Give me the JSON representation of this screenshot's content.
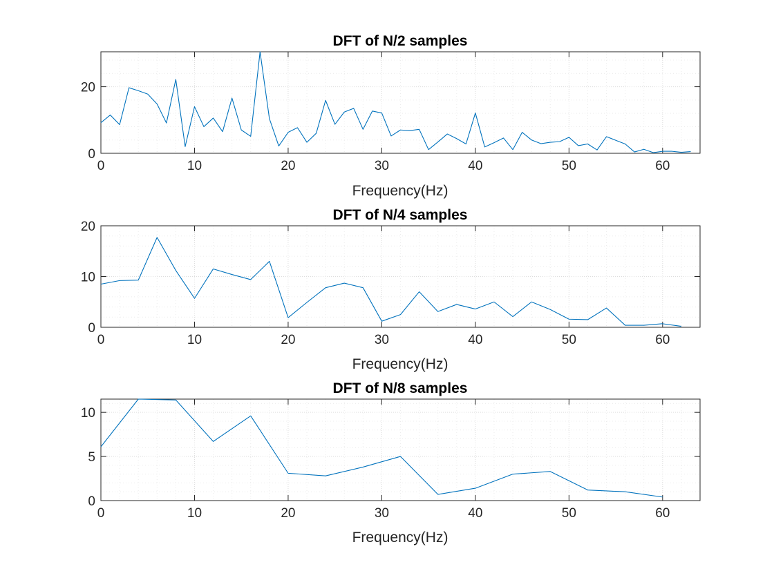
{
  "chart_data": [
    {
      "type": "line",
      "title": "DFT of N/2 samples",
      "xlabel": "Frequency(Hz)",
      "ylabel": "",
      "xlim": [
        0,
        64
      ],
      "ylim": [
        0,
        30.5
      ],
      "xticks": [
        0,
        10,
        20,
        30,
        40,
        50,
        60
      ],
      "yticks": [
        0,
        20
      ],
      "grid": true,
      "minor_grid": true,
      "series": [
        {
          "color": "#0072BD",
          "x": [
            0,
            1,
            2,
            3,
            4,
            5,
            6,
            7,
            8,
            9,
            10,
            11,
            12,
            13,
            14,
            15,
            16,
            17,
            18,
            19,
            20,
            21,
            22,
            23,
            24,
            25,
            26,
            27,
            28,
            29,
            30,
            31,
            32,
            33,
            34,
            35,
            36,
            37,
            38,
            39,
            40,
            41,
            42,
            43,
            44,
            45,
            46,
            47,
            48,
            49,
            50,
            51,
            52,
            53,
            54,
            55,
            56,
            57,
            58,
            59,
            60,
            61,
            62,
            63
          ],
          "y": [
            9.2,
            11.5,
            8.6,
            19.7,
            18.8,
            17.8,
            14.8,
            9.1,
            22.2,
            2.0,
            14.0,
            8.0,
            10.6,
            6.5,
            16.6,
            7.0,
            5.1,
            30.5,
            10.4,
            2.2,
            6.3,
            7.7,
            3.3,
            6.0,
            15.9,
            8.7,
            12.4,
            13.5,
            7.2,
            12.7,
            12.1,
            5.2,
            7.0,
            6.8,
            7.2,
            1.1,
            3.4,
            5.8,
            4.4,
            2.8,
            12.1,
            1.9,
            3.2,
            4.6,
            1.1,
            6.3,
            4.0,
            2.9,
            3.3,
            3.5,
            4.8,
            2.3,
            2.8,
            1.0,
            5.0,
            3.9,
            2.8,
            0.4,
            1.2,
            0.2,
            0.6,
            0.6,
            0.3,
            0.5
          ]
        }
      ]
    },
    {
      "type": "line",
      "title": "DFT of N/4 samples",
      "xlabel": "Frequency(Hz)",
      "ylabel": "",
      "xlim": [
        0,
        64
      ],
      "ylim": [
        0,
        20
      ],
      "xticks": [
        0,
        10,
        20,
        30,
        40,
        50,
        60
      ],
      "yticks": [
        0,
        10,
        20
      ],
      "grid": true,
      "minor_grid": true,
      "series": [
        {
          "color": "#0072BD",
          "x": [
            0,
            2,
            4,
            6,
            8,
            10,
            12,
            14,
            16,
            18,
            20,
            22,
            24,
            26,
            28,
            30,
            32,
            34,
            36,
            38,
            40,
            42,
            44,
            46,
            48,
            50,
            52,
            54,
            56,
            58,
            60,
            62
          ],
          "y": [
            8.5,
            9.2,
            9.3,
            17.7,
            11.2,
            5.7,
            11.5,
            10.4,
            9.4,
            13.0,
            1.9,
            4.9,
            7.8,
            8.7,
            7.8,
            1.2,
            2.5,
            7.0,
            3.1,
            4.5,
            3.6,
            5.0,
            2.1,
            5.0,
            3.5,
            1.6,
            1.5,
            3.8,
            0.4,
            0.4,
            0.7,
            0.2
          ]
        }
      ]
    },
    {
      "type": "line",
      "title": "DFT of N/8 samples",
      "xlabel": "Frequency(Hz)",
      "ylabel": "",
      "xlim": [
        0,
        64
      ],
      "ylim": [
        0,
        11.5
      ],
      "xticks": [
        0,
        10,
        20,
        30,
        40,
        50,
        60
      ],
      "yticks": [
        0,
        5,
        10
      ],
      "grid": true,
      "minor_grid": true,
      "series": [
        {
          "color": "#0072BD",
          "x": [
            0,
            4,
            8,
            12,
            16,
            20,
            24,
            28,
            32,
            36,
            40,
            44,
            48,
            52,
            56,
            60
          ],
          "y": [
            6.1,
            11.5,
            11.4,
            6.7,
            9.6,
            3.1,
            2.8,
            3.8,
            5.0,
            0.7,
            1.4,
            3.0,
            3.3,
            1.2,
            1.0,
            0.4
          ]
        }
      ]
    }
  ]
}
